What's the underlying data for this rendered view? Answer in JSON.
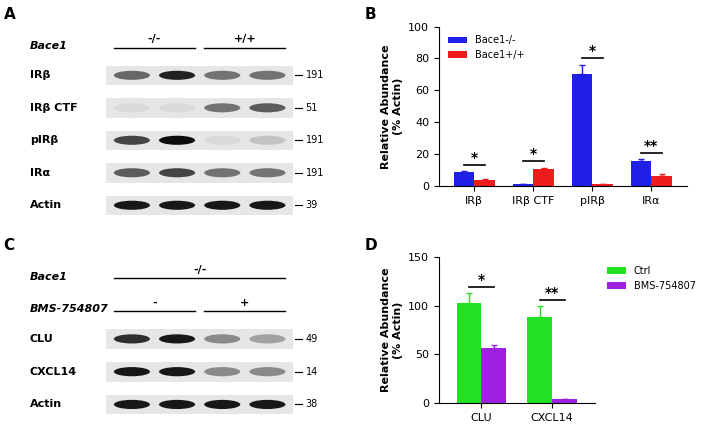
{
  "chart_data": [
    {
      "type": "bar",
      "panel": "B",
      "categories": [
        "IRβ",
        "IRβ CTF",
        "pIRβ",
        "IRα"
      ],
      "y_label": "Relative Abundance\n(% Actin)",
      "ylim": [
        0,
        100
      ],
      "yticks": [
        0,
        20,
        40,
        60,
        80,
        100
      ],
      "legend": "upper left",
      "significance": [
        "*",
        "*",
        "*",
        "**"
      ],
      "series": [
        {
          "name": "Bace1-/-",
          "color": "#1f1fe6",
          "values": [
            9,
            1,
            70,
            16
          ],
          "errors": [
            0.5,
            0.3,
            6,
            1
          ]
        },
        {
          "name": "Bace1+/+",
          "color": "#ee1c1c",
          "values": [
            4,
            10.5,
            1,
            6
          ],
          "errors": [
            0.5,
            1,
            0.2,
            1.5
          ]
        }
      ]
    },
    {
      "type": "bar",
      "panel": "D",
      "categories": [
        "CLU",
        "CXCL14"
      ],
      "y_label": "Relative Abundance\n(% Actin)",
      "ylim": [
        0,
        150
      ],
      "yticks": [
        0,
        50,
        100,
        150
      ],
      "legend": "upper left",
      "significance": [
        "*",
        "**"
      ],
      "series": [
        {
          "name": "Ctrl",
          "color": "#22e022",
          "values": [
            103,
            88
          ],
          "errors": [
            10,
            12
          ]
        },
        {
          "name": "BMS-754807",
          "color": "#a020e0",
          "values": [
            57,
            4
          ],
          "errors": [
            3,
            0.5
          ]
        }
      ]
    }
  ],
  "blots": [
    {
      "panel": "A",
      "headers": [
        {
          "label": "Bace1",
          "groups": [
            "-/-",
            "+/+"
          ]
        }
      ],
      "rows": [
        {
          "label": "IRβ",
          "mw": 191,
          "bands": [
            0.55,
            0.85,
            0.5,
            0.5
          ]
        },
        {
          "label": "IRβ CTF",
          "mw": 51,
          "bands": [
            0.05,
            0.05,
            0.5,
            0.6
          ]
        },
        {
          "label": "pIRβ",
          "mw": 191,
          "bands": [
            0.7,
            0.95,
            0.05,
            0.15
          ]
        },
        {
          "label": "IRα",
          "mw": 191,
          "bands": [
            0.6,
            0.7,
            0.5,
            0.5
          ]
        },
        {
          "label": "Actin",
          "mw": 39,
          "bands": [
            0.9,
            0.9,
            0.9,
            0.9
          ]
        }
      ]
    },
    {
      "panel": "C",
      "headers": [
        {
          "label": "Bace1",
          "groups": [
            "-/-"
          ]
        },
        {
          "label": "BMS-754807",
          "groups": [
            "-",
            "+"
          ]
        }
      ],
      "rows": [
        {
          "label": "CLU",
          "mw": 49,
          "bands": [
            0.8,
            0.9,
            0.4,
            0.3
          ]
        },
        {
          "label": "CXCL14",
          "mw": 14,
          "bands": [
            0.9,
            0.9,
            0.4,
            0.4
          ]
        },
        {
          "label": "Actin",
          "mw": 38,
          "bands": [
            0.9,
            0.9,
            0.9,
            0.9
          ]
        }
      ]
    }
  ]
}
